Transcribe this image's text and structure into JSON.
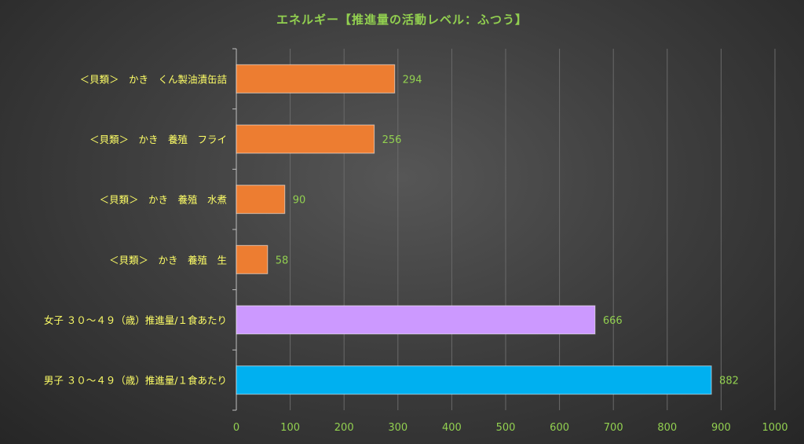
{
  "colors": {
    "title": "#92d050",
    "category_label": "#ffff66",
    "value_label": "#92d050",
    "tick_label": "#92d050",
    "gridline": "#6a6a6a",
    "axis": "#bfbfbf",
    "bar_orange": "#ed7d31",
    "bar_purple": "#cc99ff",
    "bar_blue": "#00b0f0"
  },
  "chart_data": {
    "type": "bar",
    "orientation": "horizontal",
    "title": "エネルギー【推進量の活動レベル：ふつう】",
    "categories": [
      "＜貝類＞　かき　くん製油漬缶詰",
      "＜貝類＞　かき　養殖　フライ",
      "＜貝類＞　かき　養殖　水煮",
      "＜貝類＞　かき　養殖　生",
      "女子 ３０～４９（歳）推進量/１食あたり",
      "男子 ３０～４９（歳）推進量/１食あたり"
    ],
    "values": [
      294,
      256,
      90,
      58,
      666,
      882
    ],
    "value_labels": [
      "294",
      "256",
      "90",
      "58",
      "666",
      "882"
    ],
    "bar_colors": [
      "#ed7d31",
      "#ed7d31",
      "#ed7d31",
      "#ed7d31",
      "#cc99ff",
      "#00b0f0"
    ],
    "xlim": [
      0,
      1000
    ],
    "xticks": [
      0,
      100,
      200,
      300,
      400,
      500,
      600,
      700,
      800,
      900,
      1000
    ],
    "xtick_labels": [
      "0",
      "100",
      "200",
      "300",
      "400",
      "500",
      "600",
      "700",
      "800",
      "900",
      "1000"
    ],
    "grid": true,
    "xlabel": "",
    "ylabel": ""
  }
}
